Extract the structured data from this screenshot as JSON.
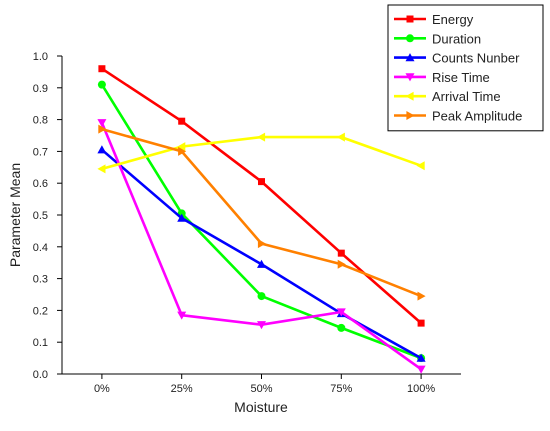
{
  "chart_data": {
    "type": "line",
    "title": "",
    "xlabel": "Moisture",
    "ylabel": "Parameter Mean",
    "categories": [
      "0%",
      "25%",
      "50%",
      "75%",
      "100%"
    ],
    "ylim": [
      0,
      1.0
    ],
    "yticks": [
      "0.0",
      "0.1",
      "0.2",
      "0.3",
      "0.4",
      "0.5",
      "0.6",
      "0.7",
      "0.8",
      "0.9",
      "1.0"
    ],
    "grid": false,
    "legend_position": "top-right",
    "series": [
      {
        "name": "Energy",
        "values": [
          0.96,
          0.795,
          0.605,
          0.38,
          0.16
        ],
        "color": "#ff0000",
        "marker": "square"
      },
      {
        "name": "Duration",
        "values": [
          0.91,
          0.505,
          0.245,
          0.145,
          0.05
        ],
        "color": "#00ff00",
        "marker": "circle"
      },
      {
        "name": "Counts Nunber",
        "values": [
          0.705,
          0.49,
          0.345,
          0.19,
          0.05
        ],
        "color": "#0000ff",
        "marker": "triangle-up"
      },
      {
        "name": "Rise Time",
        "values": [
          0.79,
          0.185,
          0.155,
          0.195,
          0.015
        ],
        "color": "#ff00ff",
        "marker": "triangle-down"
      },
      {
        "name": "Arrival Time",
        "values": [
          0.645,
          0.715,
          0.745,
          0.745,
          0.655
        ],
        "color": "#ffff00",
        "marker": "triangle-left"
      },
      {
        "name": "Peak Amplitude",
        "values": [
          0.77,
          0.7,
          0.41,
          0.345,
          0.245
        ],
        "color": "#ff8000",
        "marker": "triangle-right"
      }
    ]
  }
}
